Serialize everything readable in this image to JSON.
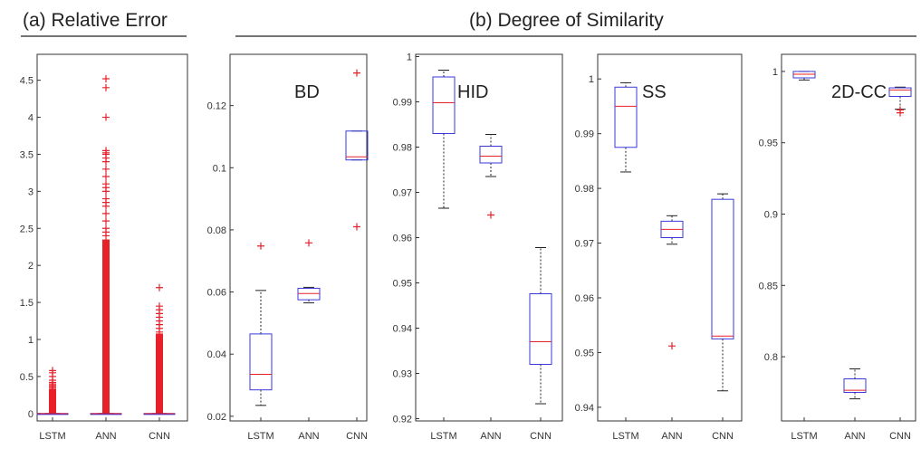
{
  "headers": {
    "a": "(a) Relative  Error",
    "b": "(b) Degree of Similarity"
  },
  "colors": {
    "box": "#3a3adc",
    "median": "#e8202a",
    "whisker": "#222222",
    "outlier": "#e8202a",
    "axis": "#333333"
  },
  "chart_data": [
    {
      "type": "box",
      "title": "",
      "label": "",
      "categories": [
        "LSTM",
        "ANN",
        "CNN"
      ],
      "ylim": [
        -0.1,
        4.85
      ],
      "yticks": [
        0,
        0.5,
        1,
        1.5,
        2,
        2.5,
        3,
        3.5,
        4,
        4.5
      ],
      "boxes": [
        {
          "q1": 0,
          "median": 0,
          "q3": 0,
          "whisker_low": 0,
          "whisker_high": 0,
          "outlier_band": [
            0,
            0.33
          ],
          "outliers": [
            0.34,
            0.36,
            0.38,
            0.4,
            0.42,
            0.45,
            0.5,
            0.55,
            0.58
          ]
        },
        {
          "q1": 0,
          "median": 0,
          "q3": 0,
          "whisker_low": 0,
          "whisker_high": 0,
          "outlier_band": [
            0,
            2.35
          ],
          "outliers": [
            2.4,
            2.45,
            2.5,
            2.6,
            2.7,
            2.8,
            2.85,
            2.9,
            3.0,
            3.05,
            3.1,
            3.2,
            3.3,
            3.4,
            3.45,
            3.5,
            3.52,
            3.55,
            4.0,
            4.4,
            4.52
          ]
        },
        {
          "q1": 0,
          "median": 0,
          "q3": 0,
          "whisker_low": 0,
          "whisker_high": 0,
          "outlier_band": [
            0,
            1.08
          ],
          "outliers": [
            1.1,
            1.15,
            1.2,
            1.25,
            1.3,
            1.35,
            1.4,
            1.45,
            1.7
          ]
        }
      ]
    },
    {
      "type": "box",
      "label": "BD",
      "categories": [
        "LSTM",
        "ANN",
        "CNN"
      ],
      "ylim": [
        0.0185,
        0.1365
      ],
      "yticks": [
        0.02,
        0.04,
        0.06,
        0.08,
        0.1,
        0.12
      ],
      "boxes": [
        {
          "q1": 0.0285,
          "median": 0.0335,
          "q3": 0.0465,
          "whisker_low": 0.0235,
          "whisker_high": 0.0605,
          "outliers": [
            0.0748
          ]
        },
        {
          "q1": 0.0575,
          "median": 0.0595,
          "q3": 0.0612,
          "whisker_low": 0.0565,
          "whisker_high": 0.0615,
          "outliers": [
            0.0758
          ]
        },
        {
          "q1": 0.1025,
          "median": 0.1035,
          "q3": 0.1118,
          "whisker_low": 0.1025,
          "whisker_high": 0.1118,
          "outliers": [
            0.081,
            0.1305
          ]
        }
      ]
    },
    {
      "type": "box",
      "label": "HID",
      "categories": [
        "LSTM",
        "ANN",
        "CNN"
      ],
      "ylim": [
        0.9195,
        1.0005
      ],
      "yticks": [
        0.92,
        0.93,
        0.94,
        0.95,
        0.96,
        0.97,
        0.98,
        0.99,
        1
      ],
      "boxes": [
        {
          "q1": 0.983,
          "median": 0.9898,
          "q3": 0.9955,
          "whisker_low": 0.9665,
          "whisker_high": 0.997,
          "outliers": []
        },
        {
          "q1": 0.9765,
          "median": 0.978,
          "q3": 0.9802,
          "whisker_low": 0.9735,
          "whisker_high": 0.9828,
          "outliers": [
            0.965
          ]
        },
        {
          "q1": 0.932,
          "median": 0.937,
          "q3": 0.9476,
          "whisker_low": 0.9233,
          "whisker_high": 0.9578,
          "outliers": []
        }
      ]
    },
    {
      "type": "box",
      "label": "SS",
      "categories": [
        "LSTM",
        "ANN",
        "CNN"
      ],
      "ylim": [
        0.9375,
        1.0045
      ],
      "yticks": [
        0.94,
        0.95,
        0.96,
        0.97,
        0.98,
        0.99,
        1
      ],
      "boxes": [
        {
          "q1": 0.9875,
          "median": 0.995,
          "q3": 0.9985,
          "whisker_low": 0.983,
          "whisker_high": 0.9993,
          "outliers": []
        },
        {
          "q1": 0.971,
          "median": 0.9725,
          "q3": 0.974,
          "whisker_low": 0.9698,
          "whisker_high": 0.975,
          "outliers": [
            0.9512
          ]
        },
        {
          "q1": 0.9525,
          "median": 0.953,
          "q3": 0.978,
          "whisker_low": 0.943,
          "whisker_high": 0.979,
          "outliers": []
        }
      ]
    },
    {
      "type": "box",
      "label": "2D-CC",
      "categories": [
        "LSTM",
        "ANN",
        "CNN"
      ],
      "ylim": [
        0.755,
        1.012
      ],
      "yticks": [
        0.8,
        0.85,
        0.9,
        0.95,
        1
      ],
      "boxes": [
        {
          "q1": 0.9955,
          "median": 0.998,
          "q3": 1.0,
          "whisker_low": 0.994,
          "whisker_high": 1.0,
          "outliers": []
        },
        {
          "q1": 0.775,
          "median": 0.7765,
          "q3": 0.7845,
          "whisker_low": 0.7705,
          "whisker_high": 0.7915,
          "outliers": []
        },
        {
          "q1": 0.9825,
          "median": 0.987,
          "q3": 0.9885,
          "whisker_low": 0.9735,
          "whisker_high": 0.989,
          "outliers": [
            0.971,
            0.973
          ]
        }
      ]
    }
  ]
}
